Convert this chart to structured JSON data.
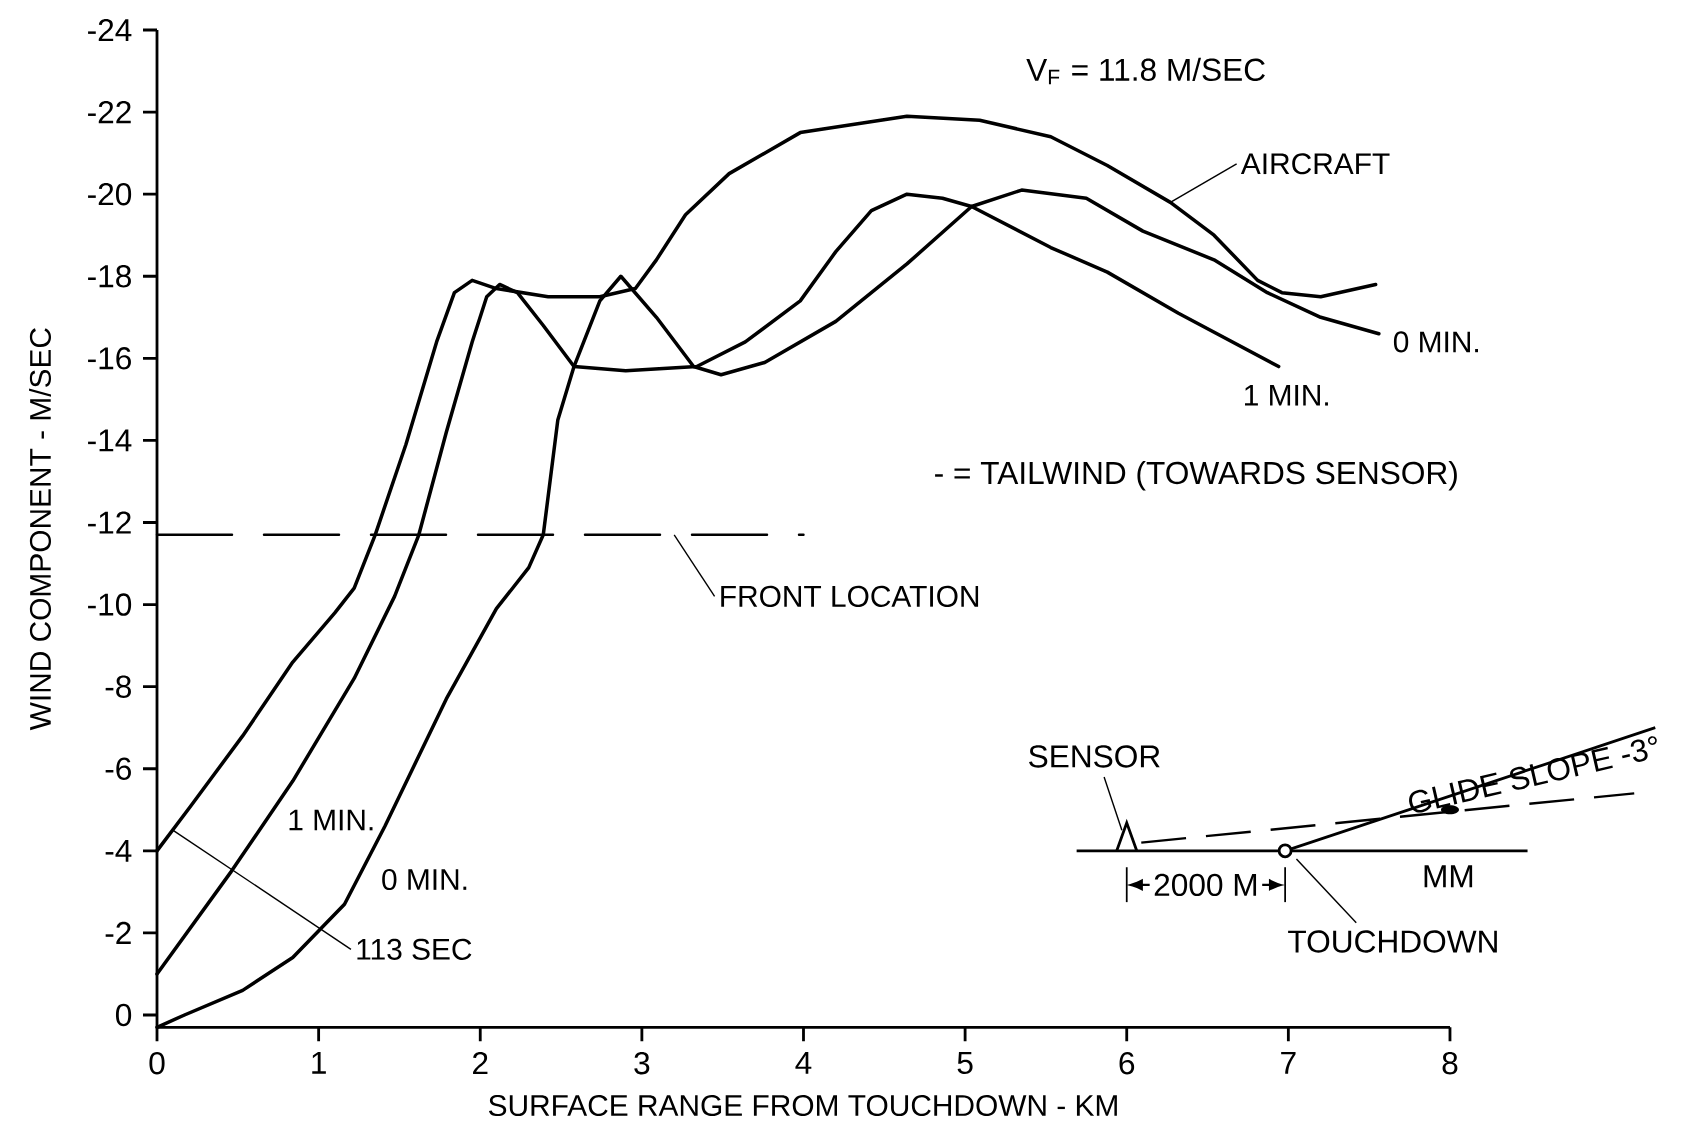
{
  "chart_data": {
    "type": "line",
    "xlabel": "SURFACE RANGE FROM TOUCHDOWN - KM",
    "ylabel": "WIND COMPONENT - M/SEC",
    "xlim": [
      0,
      8
    ],
    "ylim": [
      0.3,
      -24
    ],
    "xticks": [
      0,
      1,
      2,
      3,
      4,
      5,
      6,
      7,
      8
    ],
    "yticks": [
      0,
      -2,
      -4,
      -6,
      -8,
      -10,
      -12,
      -14,
      -16,
      -18,
      -20,
      -22,
      -24
    ],
    "marker": "none",
    "series": [
      {
        "color": "#000000",
        "line_style": "solid",
        "x": [
          0,
          0.21,
          0.53,
          0.84,
          1.1,
          1.22,
          1.35,
          1.54,
          1.73,
          1.84,
          1.95,
          2.1,
          2.42,
          2.74,
          2.96,
          3.09,
          3.27,
          3.54,
          3.98,
          4.64,
          5.09,
          5.53,
          5.88,
          6.27,
          6.54,
          6.81,
          6.96,
          7.2,
          7.54
        ],
        "values": [
          -4.0,
          -5.1,
          -6.8,
          -8.6,
          -9.8,
          -10.4,
          -11.7,
          -13.9,
          -16.4,
          -17.6,
          -17.9,
          -17.7,
          -17.5,
          -17.5,
          -17.7,
          -18.4,
          -19.5,
          -20.5,
          -21.5,
          -21.9,
          -21.8,
          -21.4,
          -20.7,
          -19.8,
          -19.0,
          -17.9,
          -17.6,
          -17.5,
          -17.8
        ]
      },
      {
        "color": "#000000",
        "line_style": "solid",
        "x": [
          0,
          0.46,
          0.84,
          1.22,
          1.47,
          1.62,
          1.79,
          1.95,
          2.04,
          2.12,
          2.23,
          2.39,
          2.58,
          2.9,
          3.34,
          3.64,
          3.98,
          4.2,
          4.42,
          4.64,
          4.86,
          5.04,
          5.53,
          5.88,
          6.32,
          6.94
        ],
        "values": [
          -1.0,
          -3.5,
          -5.7,
          -8.2,
          -10.2,
          -11.7,
          -14.2,
          -16.4,
          -17.5,
          -17.8,
          -17.6,
          -16.8,
          -15.8,
          -15.7,
          -15.8,
          -16.4,
          -17.4,
          -18.6,
          -19.6,
          -20.0,
          -19.9,
          -19.7,
          -18.7,
          -18.1,
          -17.1,
          -15.8
        ]
      },
      {
        "color": "#000000",
        "line_style": "solid",
        "x": [
          0,
          0.17,
          0.53,
          0.84,
          1.16,
          1.41,
          1.79,
          2.1,
          2.3,
          2.39,
          2.48,
          2.58,
          2.74,
          2.87,
          3.09,
          3.32,
          3.49,
          3.76,
          4.2,
          4.64,
          5.04,
          5.35,
          5.75,
          6.1,
          6.54,
          6.87,
          7.2,
          7.56
        ],
        "values": [
          0.3,
          0.0,
          -0.6,
          -1.4,
          -2.7,
          -4.6,
          -7.7,
          -9.9,
          -10.9,
          -11.7,
          -14.5,
          -15.8,
          -17.4,
          -18.0,
          -17.0,
          -15.8,
          -15.6,
          -15.9,
          -16.9,
          -18.3,
          -19.7,
          -20.1,
          -19.9,
          -19.1,
          -18.4,
          -17.6,
          -17.0,
          -16.6
        ]
      },
      {
        "color": "#000000",
        "line_style": "dashed",
        "x": [
          0,
          4
        ],
        "values": [
          -11.7,
          -11.7
        ]
      }
    ],
    "annotations": [
      {
        "text": "1 MIN.",
        "x": 0.66,
        "y": -4.7
      },
      {
        "text": "0 MIN.",
        "x": 1.24,
        "y": -3.3
      },
      {
        "text": "113 SEC",
        "x": 0.1,
        "y": -4.5
      },
      {
        "text": "FRONT LOCATION",
        "x": 3.2,
        "y": -11.7
      },
      {
        "text": "AIRCRAFT",
        "x": 6.27,
        "y": -19.8
      },
      {
        "text": "0 MIN.",
        "x": 7.56,
        "y": -16.6
      },
      {
        "text": "1 MIN.",
        "x": 6.94,
        "y": -15.8
      },
      "V$_{F}$ = 11.8 M/SEC",
      "- = TAILWIND (TOWARDS SENSOR)",
      "SENSOR",
      "GLIDE SLOPE -3°",
      "2000 M",
      "MM",
      "TOUCHDOWN"
    ]
  }
}
